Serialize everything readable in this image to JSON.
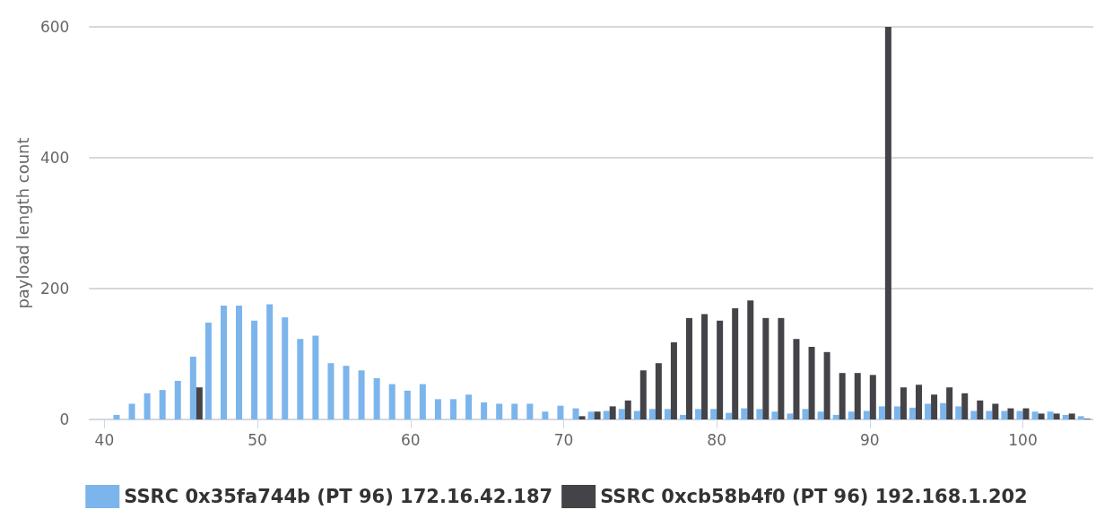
{
  "chart_data": {
    "type": "bar",
    "ylabel": "payload length count",
    "x": [
      41,
      42,
      43,
      44,
      45,
      46,
      47,
      48,
      49,
      50,
      51,
      52,
      53,
      54,
      55,
      56,
      57,
      58,
      59,
      60,
      61,
      62,
      63,
      64,
      65,
      66,
      67,
      68,
      69,
      70,
      71,
      72,
      73,
      74,
      75,
      76,
      77,
      78,
      79,
      80,
      81,
      82,
      83,
      84,
      85,
      86,
      87,
      88,
      89,
      90,
      91,
      92,
      93,
      94,
      95,
      96,
      97,
      98,
      99,
      100,
      101,
      102,
      103,
      104
    ],
    "series": [
      {
        "name": "SSRC 0x35fa744b (PT 96) 172.16.42.187",
        "color": "#7cb5ec",
        "values": [
          7,
          24,
          40,
          45,
          59,
          96,
          148,
          174,
          174,
          151,
          176,
          156,
          123,
          128,
          86,
          82,
          75,
          63,
          54,
          44,
          54,
          31,
          31,
          38,
          26,
          24,
          24,
          24,
          12,
          21,
          17,
          12,
          13,
          16,
          13,
          16,
          16,
          7,
          16,
          16,
          10,
          17,
          16,
          12,
          9,
          16,
          12,
          7,
          12,
          13,
          20,
          20,
          18,
          24,
          25,
          20,
          13,
          13,
          13,
          13,
          12,
          12,
          7,
          5
        ]
      },
      {
        "name": "SSRC 0xcb58b4f0 (PT 96) 192.168.1.202",
        "color": "#434348",
        "values": [
          null,
          null,
          null,
          null,
          null,
          49,
          null,
          null,
          null,
          null,
          null,
          null,
          null,
          null,
          null,
          null,
          null,
          null,
          null,
          null,
          null,
          null,
          null,
          null,
          null,
          null,
          null,
          null,
          null,
          null,
          5,
          12,
          20,
          29,
          75,
          86,
          118,
          155,
          161,
          151,
          170,
          182,
          155,
          155,
          123,
          111,
          103,
          71,
          71,
          68,
          600,
          49,
          53,
          38,
          49,
          40,
          29,
          24,
          17,
          17,
          9,
          9,
          9,
          1
        ]
      }
    ],
    "xlim": [
      39,
      104.6
    ],
    "xticks": [
      40,
      50,
      60,
      70,
      80,
      90,
      100
    ],
    "ylim": [
      0,
      600
    ],
    "yticks": [
      0,
      200,
      400,
      600
    ],
    "grid": "y",
    "legend": "bottom"
  }
}
